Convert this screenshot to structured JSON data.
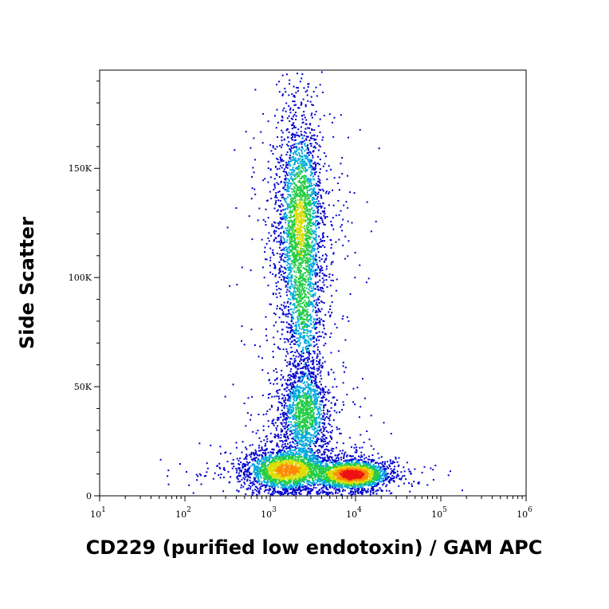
{
  "chart_data": {
    "type": "scatter",
    "subtype": "flow-cytometry-pseudocolor-density",
    "title": "",
    "xlabel": "CD229 (purified low endotoxin) / GAM APC",
    "ylabel": "Side Scatter",
    "x_scale": "log",
    "xlim": [
      10,
      1000000
    ],
    "ylim": [
      0,
      195000
    ],
    "x_ticks": [
      {
        "value": 10,
        "base": "10",
        "exp": "1"
      },
      {
        "value": 100,
        "base": "10",
        "exp": "2"
      },
      {
        "value": 1000,
        "base": "10",
        "exp": "3"
      },
      {
        "value": 10000,
        "base": "10",
        "exp": "4"
      },
      {
        "value": 100000,
        "base": "10",
        "exp": "5"
      },
      {
        "value": 1000000,
        "base": "10",
        "exp": "6"
      }
    ],
    "y_ticks": [
      {
        "value": 0,
        "label": "0"
      },
      {
        "value": 50000,
        "label": "50K"
      },
      {
        "value": 100000,
        "label": "100K"
      },
      {
        "value": 150000,
        "label": "150K"
      }
    ],
    "grid": false,
    "density_colors": [
      "#0000cc",
      "#00aadd",
      "#22cc44",
      "#dddd00",
      "#ff8800",
      "#ee1111"
    ],
    "populations": [
      {
        "name": "",
        "x_center": 2200,
        "y_center": 125000,
        "x_log_sd": 0.14,
        "y_sd": 26000,
        "count": 2600,
        "peak_density": 0.55
      },
      {
        "name": "",
        "x_center": 2500,
        "y_center": 38000,
        "x_log_sd": 0.16,
        "y_sd": 11000,
        "count": 1400,
        "peak_density": 0.45
      },
      {
        "name": "",
        "x_center": 1500,
        "y_center": 12000,
        "x_log_sd": 0.25,
        "y_sd": 5000,
        "count": 2000,
        "peak_density": 0.75
      },
      {
        "name": "",
        "x_center": 9000,
        "y_center": 10000,
        "x_log_sd": 0.22,
        "y_sd": 3500,
        "count": 2000,
        "peak_density": 1.0
      },
      {
        "name": "",
        "x_center": 2500,
        "y_center": 80000,
        "x_log_sd": 0.11,
        "y_sd": 14000,
        "count": 500,
        "peak_density": 0.25
      }
    ]
  }
}
